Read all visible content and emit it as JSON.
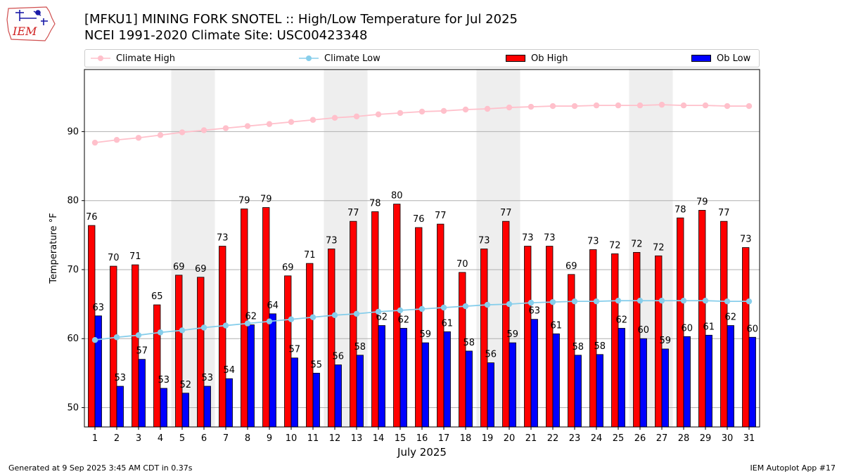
{
  "header": {
    "title_line1": "[MFKU1] MINING FORK SNOTEL :: High/Low Temperature for Jul 2025",
    "title_line2": "NCEI 1991-2020 Climate Site: USC00423348"
  },
  "logo": {
    "text": "IEM",
    "icon": "iowa-state-outline-logo"
  },
  "footer": {
    "left": "Generated at 9 Sep 2025 3:45 AM CDT in 0.37s",
    "right": "IEM Autoplot App #17"
  },
  "legend": {
    "climate_high": "Climate High",
    "climate_low": "Climate Low",
    "ob_high": "Ob High",
    "ob_low": "Ob Low"
  },
  "colors": {
    "climate_high": "#ffc0cb",
    "climate_low": "#87ceeb",
    "ob_high": "#ff0000",
    "ob_low": "#0000ff",
    "weekend_shade": "#eeeeee",
    "grid": "#b0b0b0"
  },
  "chart_data": {
    "type": "bar",
    "title": "[MFKU1] MINING FORK SNOTEL :: High/Low Temperature for Jul 2025",
    "subtitle": "NCEI 1991-2020 Climate Site: USC00423348",
    "xlabel": "July 2025",
    "ylabel": "Temperature °F",
    "ylim": [
      47.2,
      99.0
    ],
    "yticks": [
      50,
      60,
      70,
      80,
      90
    ],
    "grid": "horizontal",
    "legend_position": "top",
    "shaded_days": [
      5,
      6,
      12,
      13,
      19,
      20,
      26,
      27
    ],
    "categories": [
      1,
      2,
      3,
      4,
      5,
      6,
      7,
      8,
      9,
      10,
      11,
      12,
      13,
      14,
      15,
      16,
      17,
      18,
      19,
      20,
      21,
      22,
      23,
      24,
      25,
      26,
      27,
      28,
      29,
      30,
      31
    ],
    "series": [
      {
        "name": "Ob High",
        "kind": "bar",
        "values": [
          76.4,
          70.5,
          70.7,
          64.9,
          69.2,
          68.9,
          73.4,
          78.8,
          79.0,
          69.1,
          70.9,
          73.0,
          77.0,
          78.4,
          79.5,
          76.1,
          76.6,
          69.6,
          73.0,
          77.0,
          73.4,
          73.4,
          69.3,
          72.9,
          72.3,
          72.5,
          72.0,
          77.5,
          78.6,
          77.0,
          73.2
        ],
        "labels": [
          76,
          70,
          71,
          65,
          69,
          69,
          73,
          79,
          79,
          69,
          71,
          73,
          77,
          78,
          80,
          76,
          77,
          70,
          73,
          77,
          73,
          73,
          69,
          73,
          72,
          72,
          72,
          78,
          79,
          77,
          73
        ]
      },
      {
        "name": "Ob Low",
        "kind": "bar",
        "values": [
          63.3,
          53.1,
          57.0,
          52.8,
          52.1,
          53.1,
          54.2,
          62.0,
          63.6,
          57.2,
          55.0,
          56.2,
          57.6,
          61.9,
          61.5,
          59.4,
          61.0,
          58.2,
          56.5,
          59.4,
          62.8,
          60.7,
          57.6,
          57.7,
          61.5,
          60.0,
          58.5,
          60.3,
          60.5,
          61.9,
          60.2
        ],
        "labels": [
          63,
          53,
          57,
          53,
          52,
          53,
          54,
          62,
          64,
          57,
          55,
          56,
          58,
          62,
          62,
          59,
          61,
          58,
          56,
          59,
          63,
          61,
          58,
          58,
          62,
          60,
          59,
          60,
          61,
          62,
          60
        ]
      },
      {
        "name": "Climate High",
        "kind": "line",
        "values": [
          88.4,
          88.8,
          89.1,
          89.5,
          89.9,
          90.2,
          90.5,
          90.8,
          91.1,
          91.4,
          91.7,
          92.0,
          92.2,
          92.5,
          92.7,
          92.9,
          93.0,
          93.2,
          93.3,
          93.5,
          93.6,
          93.7,
          93.7,
          93.8,
          93.8,
          93.8,
          93.9,
          93.8,
          93.8,
          93.7,
          93.7
        ]
      },
      {
        "name": "Climate Low",
        "kind": "line",
        "values": [
          59.8,
          60.2,
          60.5,
          60.9,
          61.2,
          61.6,
          61.9,
          62.2,
          62.5,
          62.8,
          63.1,
          63.4,
          63.6,
          63.9,
          64.1,
          64.3,
          64.5,
          64.7,
          64.9,
          65.0,
          65.2,
          65.3,
          65.4,
          65.4,
          65.5,
          65.5,
          65.5,
          65.5,
          65.5,
          65.4,
          65.4
        ]
      }
    ]
  }
}
